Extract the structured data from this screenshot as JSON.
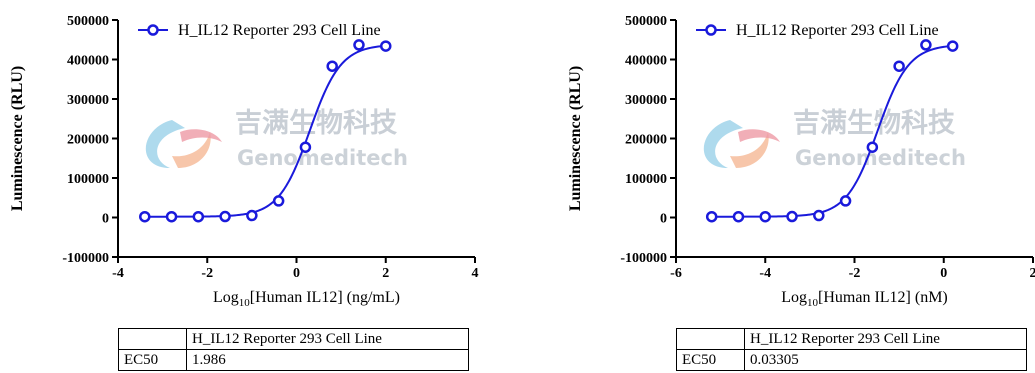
{
  "watermark": {
    "cn": "吉满生物科技",
    "en": "Genomeditech"
  },
  "chart_data": [
    {
      "type": "line",
      "title": "",
      "xlabel": "Log10[Human IL12] (ng/mL)",
      "xlabel_main": "Log",
      "xlabel_sub": "10",
      "xlabel_rest": "[Human IL12] (ng/mL)",
      "ylabel": "Luminescence (RLU)",
      "xlim": [
        -4,
        4
      ],
      "ylim": [
        -100000,
        500000
      ],
      "xticks": [
        -4,
        -2,
        0,
        2,
        4
      ],
      "yticks": [
        -100000,
        0,
        100000,
        200000,
        300000,
        400000,
        500000
      ],
      "xtick_labels": [
        "-4",
        "-2",
        "0",
        "2",
        "4"
      ],
      "ytick_labels": [
        "-100000",
        "0",
        "100000",
        "200000",
        "300000",
        "400000",
        "500000"
      ],
      "legend_position": "top",
      "grid": false,
      "series": [
        {
          "name": "H_IL12 Reporter 293 Cell Line",
          "color": "#1a1adb",
          "x": [
            -3.4,
            -2.8,
            -2.2,
            -1.6,
            -1.0,
            -0.4,
            0.2,
            0.8,
            1.4,
            2.0
          ],
          "y": [
            2000,
            2000,
            2000,
            2500,
            5000,
            42000,
            178000,
            383000,
            437000,
            434000
          ]
        }
      ],
      "fit": {
        "bottom": 2000,
        "top": 438000,
        "logEC50": 0.298,
        "hill": 1.25
      },
      "table": {
        "header": [
          "",
          "H_IL12 Reporter 293 Cell Line"
        ],
        "rows": [
          [
            "EC50",
            "1.986"
          ]
        ]
      }
    },
    {
      "type": "line",
      "title": "",
      "xlabel": "Log10[Human IL12] (nM)",
      "xlabel_main": "Log",
      "xlabel_sub": "10",
      "xlabel_rest": "[Human IL12] (nM)",
      "ylabel": "Luminescence (RLU)",
      "xlim": [
        -6,
        2
      ],
      "ylim": [
        -100000,
        500000
      ],
      "xticks": [
        -6,
        -4,
        -2,
        0,
        2
      ],
      "yticks": [
        -100000,
        0,
        100000,
        200000,
        300000,
        400000,
        500000
      ],
      "xtick_labels": [
        "-6",
        "-4",
        "-2",
        "0",
        "2"
      ],
      "ytick_labels": [
        "-100000",
        "0",
        "100000",
        "200000",
        "300000",
        "400000",
        "500000"
      ],
      "legend_position": "top",
      "grid": false,
      "series": [
        {
          "name": "H_IL12 Reporter 293 Cell Line",
          "color": "#1a1adb",
          "x": [
            -5.2,
            -4.6,
            -4.0,
            -3.4,
            -2.8,
            -2.2,
            -1.6,
            -1.0,
            -0.4,
            0.2
          ],
          "y": [
            2000,
            2000,
            2000,
            2500,
            5000,
            42000,
            178000,
            383000,
            437000,
            434000
          ]
        }
      ],
      "fit": {
        "bottom": 2000,
        "top": 438000,
        "logEC50": -1.481,
        "hill": 1.25
      },
      "table": {
        "header": [
          "",
          "H_IL12 Reporter 293 Cell Line"
        ],
        "rows": [
          [
            "EC50",
            "0.03305"
          ]
        ]
      }
    }
  ]
}
